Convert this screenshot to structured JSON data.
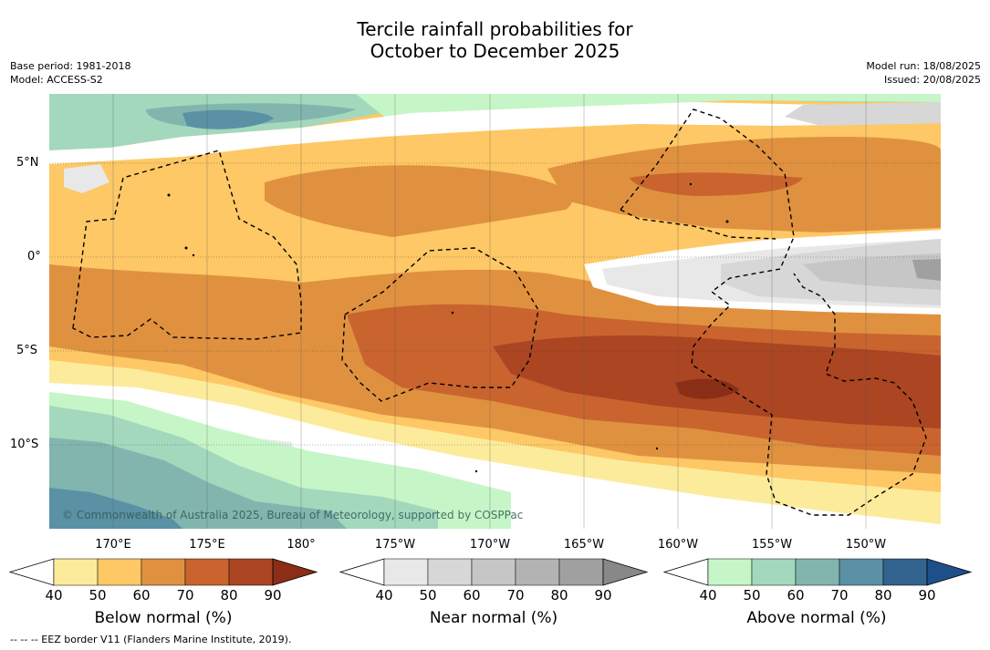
{
  "title": {
    "line1": "Tercile rainfall probabilities for",
    "line2": "October to December 2025"
  },
  "meta_left": {
    "base_period": "Base period: 1981-2018",
    "model": "Model: ACCESS-S2"
  },
  "meta_right": {
    "model_run": "Model run: 18/08/2025",
    "issued": "Issued: 20/08/2025"
  },
  "map": {
    "lat_labels": [
      "5°N",
      "0°",
      "5°S",
      "10°S"
    ],
    "lon_labels": [
      "170°E",
      "175°E",
      "180°",
      "175°W",
      "170°W",
      "165°W",
      "160°W",
      "155°W",
      "150°W"
    ],
    "copyright": "© Commonwealth of Australia 2025, Bureau of Meteorology, supported by COSPPac"
  },
  "colorbars": [
    {
      "title": "Below normal (%)",
      "ticks": [
        "40",
        "50",
        "60",
        "70",
        "80",
        "90"
      ],
      "colors": [
        "#ffffff",
        "#fdeb9c",
        "#fdc865",
        "#e0913f",
        "#c9642f",
        "#ab4522",
        "#8b2e17"
      ]
    },
    {
      "title": "Near normal (%)",
      "ticks": [
        "40",
        "50",
        "60",
        "70",
        "80",
        "90"
      ],
      "colors": [
        "#ffffff",
        "#e8e8e8",
        "#d7d7d7",
        "#c6c6c6",
        "#b3b3b3",
        "#a0a0a0",
        "#888888"
      ]
    },
    {
      "title": "Above normal (%)",
      "ticks": [
        "40",
        "50",
        "60",
        "70",
        "80",
        "90"
      ],
      "colors": [
        "#ffffff",
        "#c6f6c7",
        "#a3d8bd",
        "#82b5ae",
        "#5a91a4",
        "#33638f",
        "#1e4f8a"
      ]
    }
  ],
  "footer": "--  --  -- EEZ border V11 (Flanders Marine Institute, 2019)."
}
